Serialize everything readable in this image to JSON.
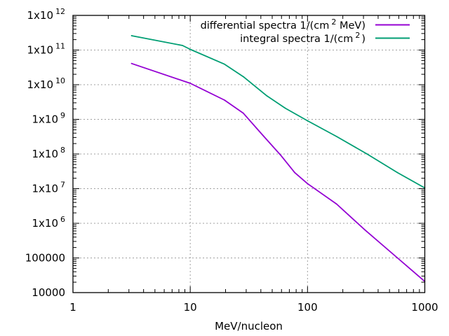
{
  "chart_data": {
    "type": "line",
    "title": "",
    "xlabel": "MeV/nucleon",
    "ylabel": "",
    "xscale": "log",
    "yscale": "log",
    "xlim": [
      1,
      1000
    ],
    "ylim": [
      10000,
      1000000000000.0
    ],
    "grid": true,
    "legend_placement": "top-right",
    "x_ticks": [
      {
        "value": 1,
        "label": "1"
      },
      {
        "value": 10,
        "label": "10"
      },
      {
        "value": 100,
        "label": "100"
      },
      {
        "value": 1000,
        "label": "1000"
      }
    ],
    "y_ticks": [
      {
        "value": 1000000000000.0,
        "base": "1x10",
        "sup": "12"
      },
      {
        "value": 100000000000.0,
        "base": "1x10",
        "sup": "11"
      },
      {
        "value": 10000000000.0,
        "base": "1x10",
        "sup": "10"
      },
      {
        "value": 1000000000.0,
        "base": "1x10",
        "sup": "9"
      },
      {
        "value": 100000000.0,
        "base": "1x10",
        "sup": "8"
      },
      {
        "value": 10000000.0,
        "base": "1x10",
        "sup": "7"
      },
      {
        "value": 1000000.0,
        "base": "1x10",
        "sup": "6"
      },
      {
        "value": 100000,
        "base": "100000",
        "sup": ""
      },
      {
        "value": 10000,
        "base": "10000",
        "sup": ""
      }
    ],
    "series": [
      {
        "name": "differential spectra 1/(cm2 MeV)",
        "label_prefix": "differential spectra 1/(cm",
        "label_sup": "2",
        "label_suffix": " MeV)",
        "color": "#9400d3",
        "x": [
          3.16,
          10,
          19.6,
          28.4,
          40.9,
          59,
          77.8,
          100,
          177,
          308,
          585,
          1000
        ],
        "y": [
          41000000000.0,
          11000000000.0,
          3600000000.0,
          1500000000.0,
          370000000.0,
          93000000.0,
          29000000.0,
          14000000.0,
          3600000.0,
          650000.0,
          100000.0,
          21000.0
        ]
      },
      {
        "name": "integral spectra 1/(cm2)",
        "label_prefix": "integral spectra 1/(cm",
        "label_sup": "2",
        "label_suffix": ")",
        "color": "#009e73",
        "x": [
          3.16,
          8.6,
          10,
          19.6,
          28.4,
          44.9,
          64.7,
          100,
          177,
          322,
          585,
          1000
        ],
        "y": [
          260000000000.0,
          135000000000.0,
          105000000000.0,
          39000000000.0,
          17000000000.0,
          4800000000.0,
          2100000000.0,
          910000000.0,
          320000000.0,
          100000000.0,
          29000000.0,
          10500000.0
        ]
      }
    ]
  }
}
